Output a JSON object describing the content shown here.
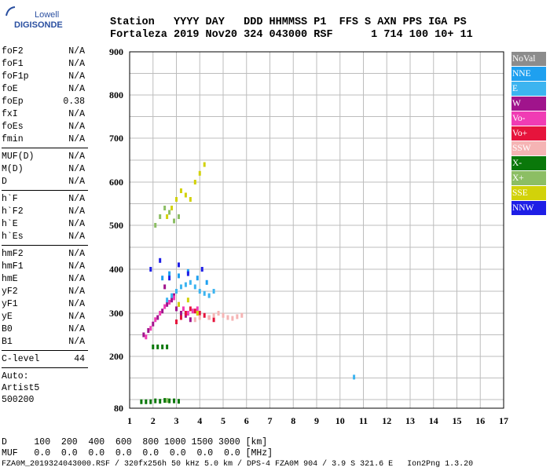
{
  "logo": {
    "top": "Lowell",
    "bottom": "DIGISONDE"
  },
  "header": {
    "row1": "Station   YYYY DAY   DDD HHMMSS P1  FFS S AXN PPS IGA PS",
    "row2": "Fortaleza 2019 Nov20 324 043000 RSF      1 714 100 10+ 11"
  },
  "sidebar": {
    "group1": [
      {
        "label": "foF2",
        "value": "N/A"
      },
      {
        "label": "foF1",
        "value": "N/A"
      },
      {
        "label": "foF1p",
        "value": "N/A"
      },
      {
        "label": "foE",
        "value": "N/A"
      },
      {
        "label": "foEp",
        "value": "0.38"
      },
      {
        "label": "fxI",
        "value": "N/A"
      },
      {
        "label": "foEs",
        "value": "N/A"
      },
      {
        "label": "fmin",
        "value": "N/A"
      }
    ],
    "group2": [
      {
        "label": "MUF(D)",
        "value": "N/A"
      },
      {
        "label": "M(D)",
        "value": "N/A"
      },
      {
        "label": "D",
        "value": "N/A"
      }
    ],
    "group3": [
      {
        "label": "h`F",
        "value": "N/A"
      },
      {
        "label": "h`F2",
        "value": "N/A"
      },
      {
        "label": "h`E",
        "value": "N/A"
      },
      {
        "label": "h`Es",
        "value": "N/A"
      }
    ],
    "group4": [
      {
        "label": "hmF2",
        "value": "N/A"
      },
      {
        "label": "hmF1",
        "value": "N/A"
      },
      {
        "label": "hmE",
        "value": "N/A"
      },
      {
        "label": "yF2",
        "value": "N/A"
      },
      {
        "label": "yF1",
        "value": "N/A"
      },
      {
        "label": "yE",
        "value": "N/A"
      },
      {
        "label": "B0",
        "value": "N/A"
      },
      {
        "label": "B1",
        "value": "N/A"
      }
    ],
    "clevel": {
      "label": "C-level",
      "value": "44"
    },
    "auto": [
      "Auto:",
      "Artist5",
      "500200"
    ]
  },
  "legend": [
    {
      "label": "NoVal",
      "color": "#8c8c8c"
    },
    {
      "label": "NNE",
      "color": "#1ea0f0"
    },
    {
      "label": "E",
      "color": "#3cb4f0"
    },
    {
      "label": "W",
      "color": "#a0148c"
    },
    {
      "label": "Vo-",
      "color": "#f03cb4"
    },
    {
      "label": "Vo+",
      "color": "#e6143c"
    },
    {
      "label": "SSW",
      "color": "#f5b4b4"
    },
    {
      "label": "X-",
      "color": "#0a780a"
    },
    {
      "label": "X+",
      "color": "#8cbe64"
    },
    {
      "label": "SSE",
      "color": "#d2d20a"
    },
    {
      "label": "NNW",
      "color": "#1e1ee6"
    }
  ],
  "bottom": {
    "row1": "D     100  200  400  600  800 1000 1500 3000 [km]",
    "row2": "MUF   0.0  0.0  0.0  0.0  0.0  0.0  0.0  0.0 [MHz]",
    "row3": "FZA0M_2019324043000.RSF / 320fx256h 50 kHz 5.0 km / DPS-4 FZA0M 904 / 3.9 S 321.6 E   Ion2Png 1.3.20"
  },
  "chart_data": {
    "type": "scatter",
    "title": "",
    "xlabel": "",
    "ylabel": "",
    "xlim": [
      1,
      17
    ],
    "ylim": [
      80,
      900
    ],
    "x_ticks": [
      1,
      2,
      3,
      4,
      5,
      6,
      7,
      8,
      9,
      10,
      11,
      12,
      13,
      14,
      15,
      16,
      17
    ],
    "y_ticks": [
      80,
      200,
      300,
      400,
      500,
      600,
      700,
      800,
      900
    ],
    "grid": true,
    "legend_position": "right",
    "series": [
      {
        "name": "X-",
        "color": "#0a780a",
        "x": [
          1.5,
          1.7,
          1.9,
          2.1,
          2.3,
          2.5,
          2.7,
          2.9,
          3.1,
          2.0,
          2.2,
          2.4,
          2.6
        ],
        "y": [
          95,
          95,
          95,
          97,
          96,
          98,
          97,
          97,
          96,
          222,
          222,
          222,
          222
        ]
      },
      {
        "name": "W",
        "color": "#a0148c",
        "x": [
          1.6,
          1.8,
          2.0,
          2.2,
          2.4,
          2.6,
          2.8,
          3.0,
          3.2,
          3.4,
          3.6,
          2.5,
          2.9
        ],
        "y": [
          250,
          260,
          275,
          290,
          305,
          320,
          330,
          310,
          300,
          295,
          285,
          360,
          340
        ]
      },
      {
        "name": "Vo-",
        "color": "#f03cb4",
        "x": [
          1.7,
          1.9,
          2.1,
          2.3,
          2.5,
          2.7,
          2.9,
          3.1,
          3.3,
          3.5,
          3.7,
          3.9
        ],
        "y": [
          245,
          265,
          285,
          300,
          315,
          325,
          335,
          320,
          310,
          300,
          305,
          310
        ]
      },
      {
        "name": "Vo+",
        "color": "#e6143c",
        "x": [
          3.0,
          3.2,
          3.4,
          3.6,
          3.8,
          4.0,
          4.2,
          4.4,
          4.6
        ],
        "y": [
          280,
          290,
          300,
          310,
          305,
          300,
          295,
          290,
          285
        ]
      },
      {
        "name": "SSW",
        "color": "#f5b4b4",
        "x": [
          4.4,
          4.6,
          4.8,
          5.0,
          5.2,
          5.4,
          5.6,
          5.8,
          3.8,
          4.0
        ],
        "y": [
          290,
          295,
          300,
          295,
          290,
          288,
          292,
          295,
          285,
          290
        ]
      },
      {
        "name": "E",
        "color": "#3cb4f0",
        "x": [
          2.6,
          2.8,
          3.0,
          3.2,
          3.4,
          3.6,
          3.8,
          4.0,
          4.2,
          4.4,
          4.6,
          10.6
        ],
        "y": [
          330,
          340,
          350,
          360,
          365,
          370,
          360,
          350,
          345,
          340,
          350,
          152
        ]
      },
      {
        "name": "NNE",
        "color": "#1ea0f0",
        "x": [
          2.4,
          2.7,
          3.1,
          3.5,
          3.9,
          4.3
        ],
        "y": [
          380,
          390,
          385,
          395,
          380,
          370
        ]
      },
      {
        "name": "SSE",
        "color": "#d2d20a",
        "x": [
          2.6,
          2.8,
          3.0,
          3.2,
          3.4,
          3.6,
          3.8,
          4.0,
          4.2,
          3.1,
          3.5,
          3.9
        ],
        "y": [
          520,
          540,
          560,
          580,
          570,
          560,
          600,
          620,
          640,
          320,
          330,
          300
        ]
      },
      {
        "name": "X+",
        "color": "#8cbe64",
        "x": [
          2.1,
          2.3,
          2.5,
          2.7,
          2.9,
          3.1,
          2.6
        ],
        "y": [
          500,
          520,
          540,
          530,
          510,
          520,
          98
        ]
      },
      {
        "name": "NNW",
        "color": "#1e1ee6",
        "x": [
          1.9,
          2.3,
          2.7,
          3.1,
          3.5,
          4.1
        ],
        "y": [
          400,
          420,
          380,
          410,
          390,
          400
        ]
      }
    ]
  }
}
